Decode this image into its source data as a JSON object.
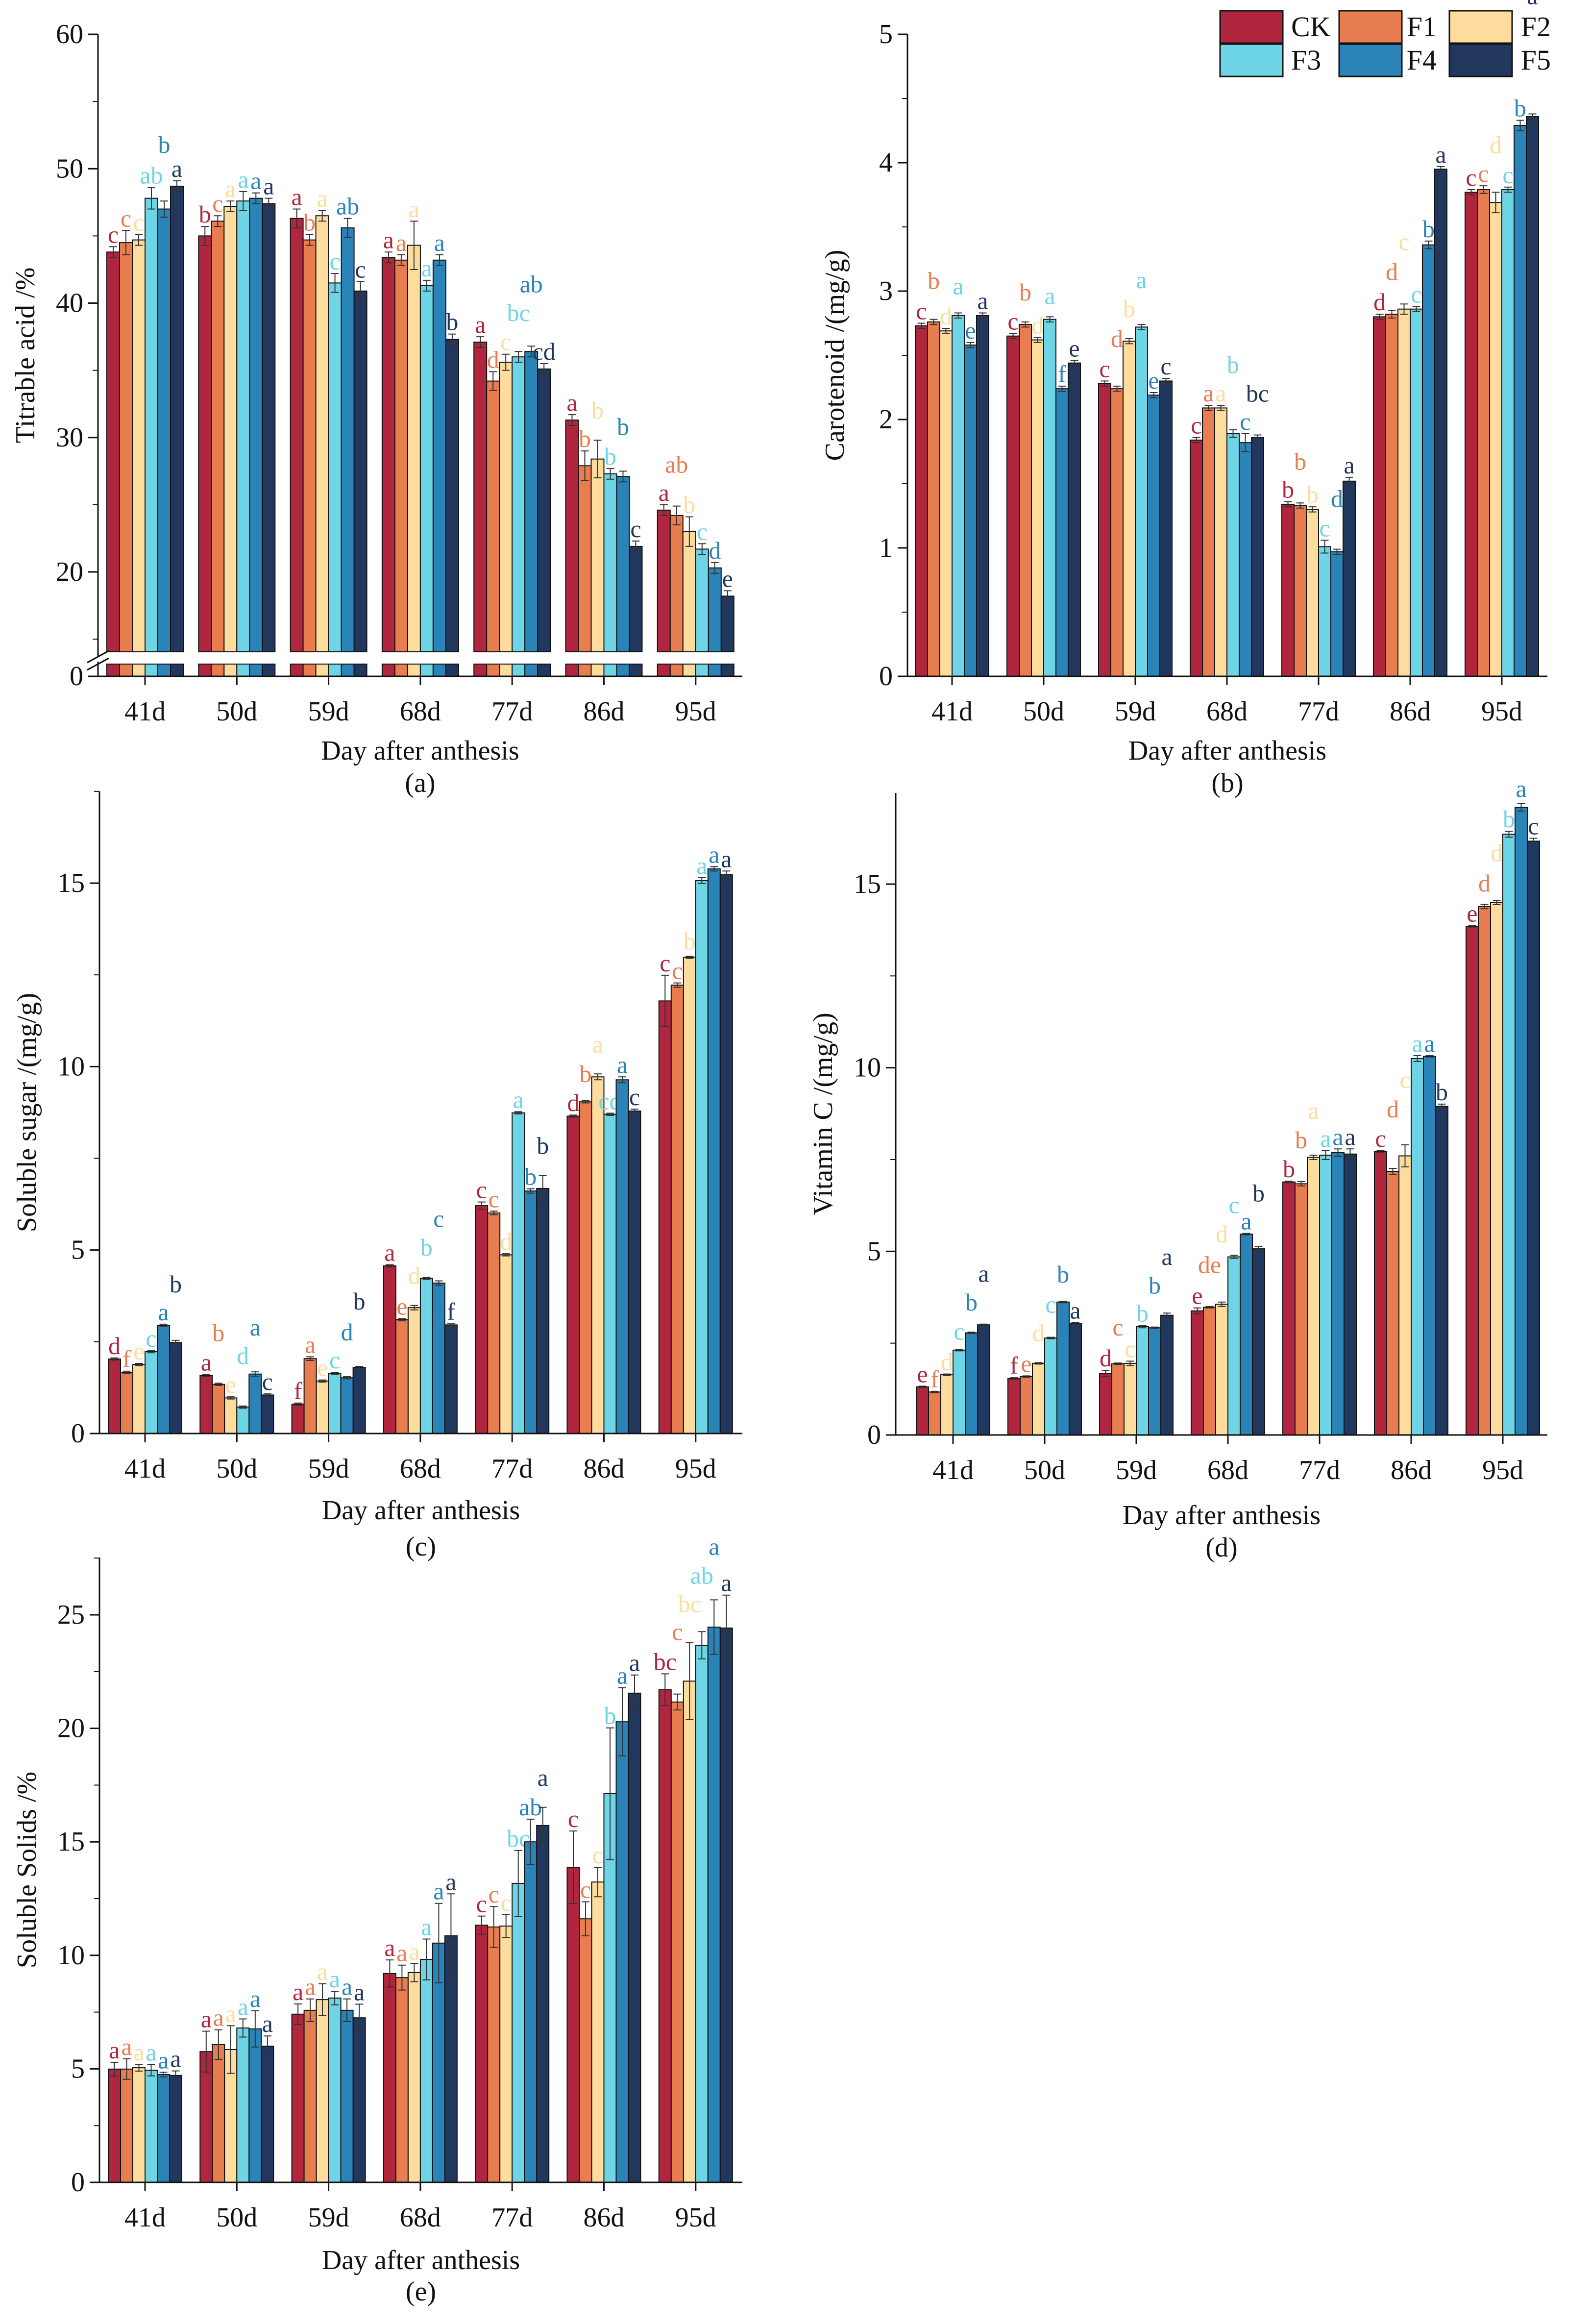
{
  "series": [
    "CK",
    "F1",
    "F2",
    "F3",
    "F4",
    "F5"
  ],
  "colors": {
    "CK": "#B0263E",
    "F1": "#E87D50",
    "F2": "#FDDC9E",
    "F3": "#6DD5E5",
    "F4": "#2A84B8",
    "F5": "#22375E"
  },
  "chart_data": [
    {
      "id": "a",
      "type": "bar",
      "panel_label": "(a)",
      "xlabel": "Day after anthesis",
      "ylabel": "Titrable acid /%",
      "categories": [
        "41d",
        "50d",
        "59d",
        "68d",
        "77d",
        "86d",
        "95d"
      ],
      "yticks": [
        0,
        20,
        30,
        40,
        50,
        60
      ],
      "ylim": [
        0,
        60
      ],
      "axis_break": [
        0,
        14
      ],
      "values": [
        [
          43.8,
          44.5,
          44.7,
          47.8,
          47.0,
          48.7
        ],
        [
          45.0,
          46.1,
          47.2,
          47.6,
          47.8,
          47.4
        ],
        [
          46.3,
          44.7,
          46.5,
          41.5,
          45.6,
          40.9
        ],
        [
          43.4,
          43.2,
          44.3,
          41.3,
          43.2,
          37.3
        ],
        [
          37.1,
          34.2,
          35.6,
          36.0,
          36.4,
          35.1
        ],
        [
          31.3,
          27.9,
          28.4,
          27.3,
          27.1,
          21.9
        ],
        [
          24.6,
          24.2,
          23.0,
          21.7,
          20.3,
          18.2
        ]
      ],
      "errors": [
        [
          0.4,
          0.9,
          0.4,
          0.8,
          0.6,
          0.4
        ],
        [
          0.7,
          0.4,
          0.4,
          0.7,
          0.4,
          0.4
        ],
        [
          0.7,
          0.4,
          0.4,
          0.7,
          0.7,
          0.7
        ],
        [
          0.4,
          0.4,
          1.8,
          0.4,
          0.4,
          0.4
        ],
        [
          0.4,
          0.7,
          0.6,
          0.4,
          0.4,
          0.4
        ],
        [
          0.4,
          1.1,
          1.4,
          0.4,
          0.4,
          0.4
        ],
        [
          0.4,
          0.7,
          1.1,
          0.4,
          0.4,
          0.4
        ]
      ],
      "letters": [
        [
          "c",
          "c",
          "c",
          "ab",
          "b",
          "a"
        ],
        [
          "b",
          "c",
          "a",
          "a",
          "a",
          "a"
        ],
        [
          "a",
          "b",
          "a",
          "c",
          "ab",
          "c"
        ],
        [
          "a",
          "a",
          "a",
          "a",
          "a",
          "b"
        ],
        [
          "a",
          "d",
          "c",
          "bc",
          "ab",
          "cd"
        ],
        [
          "a",
          "b",
          "b",
          "b",
          "b",
          "c"
        ],
        [
          "a",
          "ab",
          "b",
          "c",
          "d",
          "e"
        ]
      ]
    },
    {
      "id": "b",
      "type": "bar",
      "panel_label": "(b)",
      "xlabel": "Day after anthesis",
      "ylabel": "Carotenoid /(mg/g)",
      "categories": [
        "41d",
        "50d",
        "59d",
        "68d",
        "77d",
        "86d",
        "95d"
      ],
      "yticks": [
        0,
        1,
        2,
        3,
        4,
        5
      ],
      "ylim": [
        0,
        5
      ],
      "legend": "top-right",
      "values": [
        [
          2.73,
          2.76,
          2.69,
          2.81,
          2.58,
          2.81
        ],
        [
          2.65,
          2.74,
          2.62,
          2.78,
          2.24,
          2.44
        ],
        [
          2.28,
          2.24,
          2.61,
          2.72,
          2.19,
          2.3
        ],
        [
          1.84,
          2.09,
          2.09,
          1.89,
          1.82,
          1.86
        ],
        [
          1.34,
          1.33,
          1.3,
          1.01,
          0.97,
          1.52
        ],
        [
          2.8,
          2.82,
          2.86,
          2.86,
          3.36,
          3.95
        ],
        [
          3.77,
          3.79,
          3.69,
          3.79,
          4.29,
          4.36
        ]
      ],
      "errors": [
        [
          0.02,
          0.02,
          0.02,
          0.02,
          0.02,
          0.02
        ],
        [
          0.02,
          0.02,
          0.02,
          0.02,
          0.02,
          0.02
        ],
        [
          0.02,
          0.02,
          0.02,
          0.02,
          0.02,
          0.02
        ],
        [
          0.02,
          0.02,
          0.02,
          0.03,
          0.07,
          0.02
        ],
        [
          0.02,
          0.02,
          0.02,
          0.05,
          0.02,
          0.03
        ],
        [
          0.02,
          0.03,
          0.04,
          0.02,
          0.03,
          0.02
        ],
        [
          0.02,
          0.03,
          0.08,
          0.02,
          0.04,
          0.02
        ]
      ],
      "letters": [
        [
          "c",
          "b",
          "d",
          "a",
          "e",
          "a"
        ],
        [
          "c",
          "b",
          "d",
          "a",
          "f",
          "e"
        ],
        [
          "c",
          "d",
          "b",
          "a",
          "e",
          "c"
        ],
        [
          "c",
          "a",
          "a",
          "b",
          "c",
          "bc"
        ],
        [
          "b",
          "b",
          "b",
          "c",
          "d",
          "a"
        ],
        [
          "d",
          "d",
          "c",
          "c",
          "b",
          "a"
        ],
        [
          "c",
          "c",
          "d",
          "c",
          "b",
          "a"
        ]
      ]
    },
    {
      "id": "c",
      "type": "bar",
      "panel_label": "(c)",
      "xlabel": "Day after anthesis",
      "ylabel": "Soluble sugar /(mg/g)",
      "categories": [
        "41d",
        "50d",
        "59d",
        "68d",
        "77d",
        "86d",
        "95d"
      ],
      "yticks": [
        0,
        5,
        10,
        15
      ],
      "ylim": [
        0,
        17.5
      ],
      "values": [
        [
          2.03,
          1.67,
          1.88,
          2.23,
          2.95,
          2.48
        ],
        [
          1.58,
          1.34,
          0.97,
          0.72,
          1.62,
          1.05
        ],
        [
          0.8,
          2.04,
          1.43,
          1.64,
          1.52,
          1.8
        ],
        [
          4.57,
          3.1,
          3.43,
          4.23,
          4.1,
          2.96
        ],
        [
          6.21,
          6.01,
          4.87,
          8.74,
          6.61,
          6.68
        ],
        [
          8.65,
          9.04,
          9.72,
          8.7,
          9.64,
          8.79
        ],
        [
          11.79,
          12.22,
          12.98,
          15.07,
          15.39,
          15.23
        ]
      ],
      "errors": [
        [
          0.03,
          0.03,
          0.03,
          0.03,
          0.03,
          0.06
        ],
        [
          0.03,
          0.03,
          0.03,
          0.03,
          0.06,
          0.03
        ],
        [
          0.03,
          0.05,
          0.03,
          0.03,
          0.03,
          0.03
        ],
        [
          0.03,
          0.03,
          0.06,
          0.03,
          0.06,
          0.03
        ],
        [
          0.1,
          0.05,
          0.03,
          0.03,
          0.06,
          0.35
        ],
        [
          0.03,
          0.03,
          0.08,
          0.03,
          0.08,
          0.05
        ],
        [
          0.7,
          0.06,
          0.03,
          0.08,
          0.06,
          0.1
        ]
      ],
      "letters": [
        [
          "d",
          "f",
          "e",
          "c",
          "a",
          "b"
        ],
        [
          "a",
          "b",
          "e",
          "d",
          "a",
          "c"
        ],
        [
          "f",
          "a",
          "e",
          "c",
          "d",
          "b"
        ],
        [
          "a",
          "e",
          "d",
          "b",
          "c",
          "f"
        ],
        [
          "c",
          "c",
          "d",
          "a",
          "b",
          "b"
        ],
        [
          "d",
          "b",
          "a",
          "cd",
          "a",
          "c"
        ],
        [
          "c",
          "c",
          "b",
          "a",
          "a",
          "a"
        ]
      ]
    },
    {
      "id": "d",
      "type": "bar",
      "panel_label": "(d)",
      "xlabel": "Day after anthesis",
      "ylabel": "Vitamin C /(mg/g)",
      "categories": [
        "41d",
        "50d",
        "59d",
        "68d",
        "77d",
        "86d",
        "95d"
      ],
      "yticks": [
        0,
        5,
        10,
        15
      ],
      "ylim": [
        0,
        17.5
      ],
      "values": [
        [
          1.31,
          1.17,
          1.64,
          2.31,
          2.78,
          3.0
        ],
        [
          1.54,
          1.59,
          1.95,
          2.64,
          3.62,
          3.04
        ],
        [
          1.68,
          1.94,
          1.95,
          2.95,
          2.92,
          3.26
        ],
        [
          3.38,
          3.48,
          3.56,
          4.85,
          5.47,
          5.07
        ],
        [
          6.89,
          6.84,
          7.56,
          7.62,
          7.69,
          7.65
        ],
        [
          7.72,
          7.18,
          7.6,
          10.25,
          10.31,
          8.95
        ],
        [
          13.85,
          14.39,
          14.5,
          16.36,
          17.09,
          16.17
        ]
      ],
      "errors": [
        [
          0.02,
          0.02,
          0.02,
          0.02,
          0.02,
          0.02
        ],
        [
          0.02,
          0.02,
          0.02,
          0.02,
          0.02,
          0.02
        ],
        [
          0.08,
          0.02,
          0.06,
          0.03,
          0.02,
          0.06
        ],
        [
          0.08,
          0.02,
          0.06,
          0.04,
          0.02,
          0.06
        ],
        [
          0.02,
          0.06,
          0.06,
          0.12,
          0.1,
          0.14
        ],
        [
          0.02,
          0.08,
          0.3,
          0.08,
          0.02,
          0.06
        ],
        [
          0.02,
          0.06,
          0.06,
          0.08,
          0.1,
          0.08
        ]
      ],
      "letters": [
        [
          "e",
          "f",
          "d",
          "c",
          "b",
          "a"
        ],
        [
          "f",
          "e",
          "d",
          "c",
          "b",
          "a"
        ],
        [
          "d",
          "c",
          "c",
          "b",
          "b",
          "a"
        ],
        [
          "e",
          "de",
          "d",
          "c",
          "a",
          "b"
        ],
        [
          "b",
          "b",
          "a",
          "a",
          "a",
          "a"
        ],
        [
          "c",
          "d",
          "c",
          "a",
          "a",
          "b"
        ],
        [
          "e",
          "d",
          "d",
          "b",
          "a",
          "c"
        ]
      ]
    },
    {
      "id": "e",
      "type": "bar",
      "panel_label": "(e)",
      "xlabel": "Day after anthesis",
      "ylabel": "Soluble Solids /%",
      "categories": [
        "41d",
        "50d",
        "59d",
        "68d",
        "77d",
        "86d",
        "95d"
      ],
      "yticks": [
        0,
        5,
        10,
        15,
        20,
        25
      ],
      "ylim": [
        0,
        27.5
      ],
      "values": [
        [
          4.99,
          4.99,
          5.05,
          4.94,
          4.75,
          4.71
        ],
        [
          5.76,
          6.07,
          5.85,
          6.8,
          6.76,
          6.0
        ],
        [
          7.41,
          7.58,
          8.05,
          8.12,
          7.58,
          7.25
        ],
        [
          9.2,
          9.02,
          9.24,
          9.82,
          10.54,
          10.86
        ],
        [
          11.33,
          11.25,
          11.29,
          13.17,
          15.0,
          15.72
        ],
        [
          13.88,
          11.61,
          13.23,
          17.12,
          20.29,
          21.55
        ],
        [
          21.7,
          21.16,
          22.08,
          23.66,
          24.46,
          24.42
        ]
      ],
      "errors": [
        [
          0.3,
          0.45,
          0.15,
          0.25,
          0.1,
          0.2
        ],
        [
          0.9,
          0.65,
          1.05,
          0.4,
          0.8,
          0.45
        ],
        [
          0.45,
          0.5,
          0.7,
          0.3,
          0.5,
          0.6
        ],
        [
          0.6,
          0.55,
          0.4,
          0.9,
          1.75,
          1.85
        ],
        [
          0.4,
          0.9,
          0.5,
          1.45,
          1.0,
          0.8
        ],
        [
          1.6,
          0.75,
          0.65,
          2.9,
          1.5,
          0.8
        ],
        [
          0.7,
          0.35,
          1.7,
          0.6,
          1.2,
          1.45
        ]
      ],
      "letters": [
        [
          "a",
          "a",
          "a",
          "a",
          "a",
          "a"
        ],
        [
          "a",
          "a",
          "a",
          "a",
          "a",
          "a"
        ],
        [
          "a",
          "a",
          "a",
          "a",
          "a",
          "a"
        ],
        [
          "a",
          "a",
          "a",
          "a",
          "a",
          "a"
        ],
        [
          "c",
          "c",
          "c",
          "bc",
          "ab",
          "a"
        ],
        [
          "c",
          "c",
          "c",
          "b",
          "a",
          "a"
        ],
        [
          "bc",
          "c",
          "bc",
          "ab",
          "a",
          "a"
        ]
      ]
    }
  ]
}
